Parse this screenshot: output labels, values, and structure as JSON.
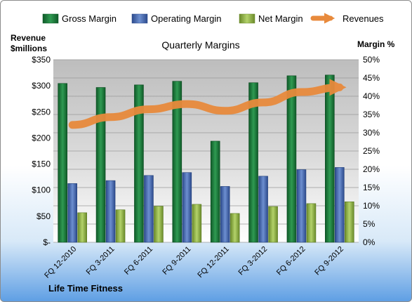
{
  "chart_data": {
    "type": "bar",
    "title": "Quarterly Margins",
    "left_axis_title": [
      "Revenue",
      "$millions"
    ],
    "right_axis_title": "Margin %",
    "footer": "Life Time Fitness",
    "categories": [
      "FQ 12-2010",
      "FQ 3-2011",
      "FQ 6-2011",
      "FQ 9-2011",
      "FQ 12-2011",
      "FQ 3-2012",
      "FQ 6-2012",
      "FQ 9-2012"
    ],
    "left_ticks": [
      "$-",
      "$50",
      "$100",
      "$150",
      "$200",
      "$250",
      "$300",
      "$350"
    ],
    "right_ticks": [
      "0%",
      "5%",
      "10%",
      "15%",
      "20%",
      "25%",
      "30%",
      "35%",
      "40%",
      "45%",
      "50%"
    ],
    "left_ylim": [
      0,
      350
    ],
    "right_ylim": [
      0,
      50
    ],
    "legend_position": "top",
    "series": [
      {
        "name": "Gross Margin",
        "axis": "right",
        "kind": "bar",
        "color": "#1e7a3c",
        "values": [
          43.5,
          42.4,
          43.1,
          44.1,
          27.7,
          43.7,
          45.6,
          45.8
        ]
      },
      {
        "name": "Operating Margin",
        "axis": "right",
        "kind": "bar",
        "color": "#4a6ab0",
        "values": [
          16.1,
          16.9,
          18.3,
          19.1,
          15.3,
          18.1,
          19.9,
          20.5
        ]
      },
      {
        "name": "Net Margin",
        "axis": "right",
        "kind": "bar",
        "color": "#8db04a",
        "values": [
          8.1,
          8.9,
          9.9,
          10.4,
          7.9,
          9.8,
          10.6,
          11.1
        ]
      },
      {
        "name": "Revenues",
        "axis": "left",
        "kind": "line",
        "color": "#e88a3c",
        "values": [
          225,
          240,
          255,
          265,
          252,
          268,
          288,
          297
        ]
      }
    ],
    "grid": true
  }
}
